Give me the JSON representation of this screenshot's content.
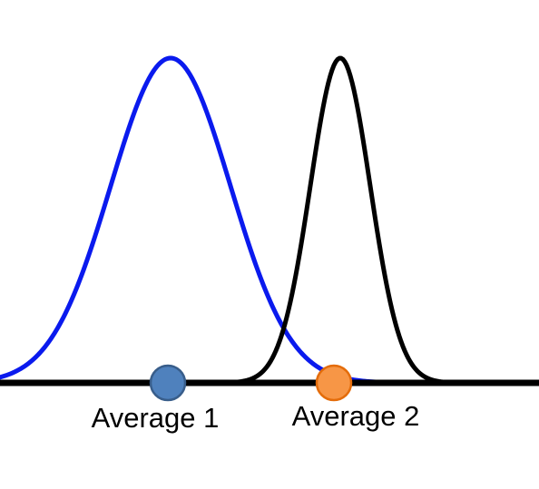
{
  "colors": {
    "background": "#ffffff",
    "axis": "#000000",
    "curve_1": "#0a1aee",
    "curve_2": "#000000",
    "marker_1_fill": "#4f81bd",
    "marker_1_stroke": "#385d8a",
    "marker_2_fill": "#f79646",
    "marker_2_stroke": "#e46c0a"
  },
  "distributions": [
    {
      "id": "distribution-1",
      "color": "#0a1aee",
      "relative_peak": 1.0,
      "relative_spread": 1.0
    },
    {
      "id": "distribution-2",
      "color": "#000000",
      "relative_peak": 1.0,
      "relative_spread": 0.5
    }
  ],
  "markers": [
    {
      "label": "Average 1",
      "fill": "#4f81bd",
      "stroke": "#385d8a"
    },
    {
      "label": "Average 2",
      "fill": "#f79646",
      "stroke": "#e46c0a"
    }
  ]
}
